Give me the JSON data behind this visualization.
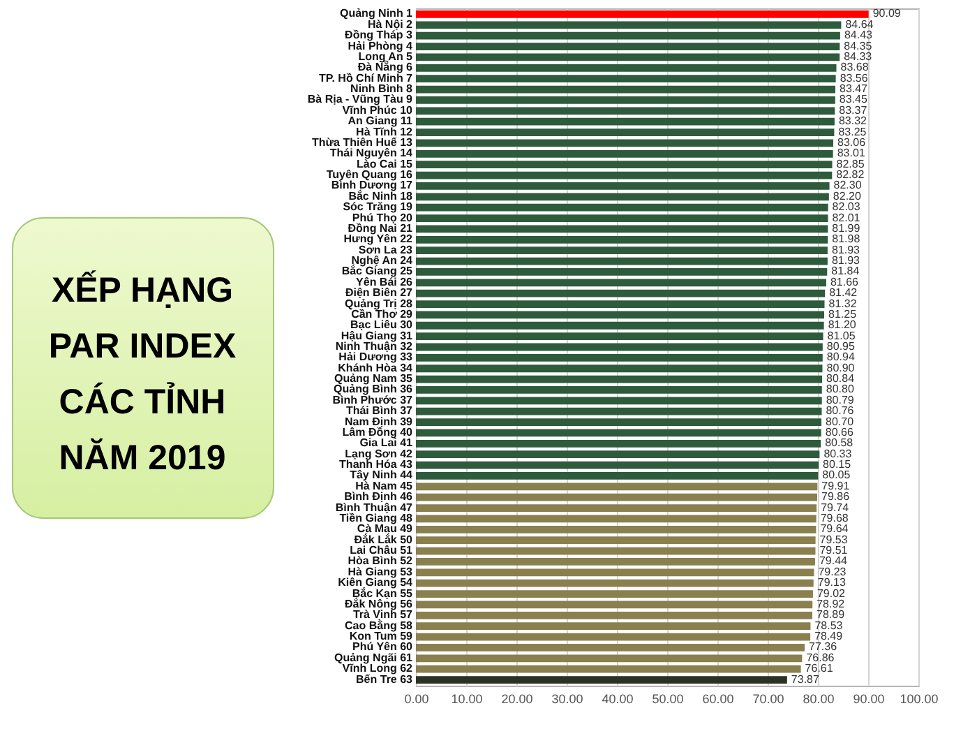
{
  "chart_data": {
    "type": "bar",
    "orientation": "horizontal",
    "title": "XẾP HẠNG PAR INDEX CÁC TỈNH NĂM 2019",
    "categories": [
      "Quảng Ninh 1",
      "Hà Nội 2",
      "Đồng Tháp 3",
      "Hải Phòng 4",
      "Long An 5",
      "Đà Nẵng 6",
      "TP. Hồ Chí Minh 7",
      "Ninh Bình 8",
      "Bà Rịa - Vũng Tàu 9",
      "Vĩnh Phúc 10",
      "An Giang 11",
      "Hà Tĩnh 12",
      "Thừa Thiên Huế 13",
      "Thái Nguyên 14",
      "Lào Cai 15",
      "Tuyên Quang 16",
      "Bình Dương 17",
      "Bắc Ninh 18",
      "Sóc Trăng 19",
      "Phú Thọ 20",
      "Đồng Nai 21",
      "Hưng Yên 22",
      "Sơn La 23",
      "Nghệ An 24",
      "Bắc Giang 25",
      "Yên Bái 26",
      "Điện Biên 27",
      "Quảng Trị 28",
      "Cần Thơ 29",
      "Bạc Liêu 30",
      "Hậu Giang 31",
      "Ninh Thuận 32",
      "Hải Dương 33",
      "Khánh Hòa 34",
      "Quảng Nam 35",
      "Quảng Bình 36",
      "Bình Phước 37",
      "Thái Bình 37",
      "Nam Định 39",
      "Lâm Đồng 40",
      "Gia Lai 41",
      "Lạng Sơn 42",
      "Thanh Hóa 43",
      "Tây Ninh 44",
      "Hà Nam 45",
      "Bình Định 46",
      "Bình Thuận 47",
      "Tiền Giang 48",
      "Cà Mau 49",
      "Đắk Lắk 50",
      "Lai Châu 51",
      "Hòa Bình 52",
      "Hà Giang 53",
      "Kiên Giang 54",
      "Bắc Kạn 55",
      "Đắk Nông 56",
      "Trà Vinh 57",
      "Cao Bằng 58",
      "Kon Tum 59",
      "Phú Yên 60",
      "Quảng Ngãi 61",
      "Vĩnh Long 62",
      "Bến Tre 63"
    ],
    "values": [
      90.09,
      84.64,
      84.43,
      84.35,
      84.33,
      83.68,
      83.56,
      83.47,
      83.45,
      83.37,
      83.32,
      83.25,
      83.06,
      83.01,
      82.85,
      82.82,
      82.3,
      82.2,
      82.03,
      82.01,
      81.99,
      81.98,
      81.93,
      81.93,
      81.84,
      81.66,
      81.42,
      81.32,
      81.25,
      81.2,
      81.05,
      80.95,
      80.94,
      80.9,
      80.84,
      80.8,
      80.79,
      80.76,
      80.7,
      80.66,
      80.58,
      80.33,
      80.15,
      80.05,
      79.91,
      79.86,
      79.74,
      79.68,
      79.64,
      79.53,
      79.51,
      79.44,
      79.23,
      79.13,
      79.02,
      78.92,
      78.89,
      78.53,
      78.49,
      77.36,
      76.86,
      76.61,
      73.87
    ],
    "colors": [
      "#ff0000",
      "#2e5b3b",
      "#2e5b3b",
      "#2e5b3b",
      "#2e5b3b",
      "#2e5b3b",
      "#2e5b3b",
      "#2e5b3b",
      "#2e5b3b",
      "#2e5b3b",
      "#2e5b3b",
      "#2e5b3b",
      "#2e5b3b",
      "#2e5b3b",
      "#2e5b3b",
      "#2e5b3b",
      "#2e5b3b",
      "#2e5b3b",
      "#2e5b3b",
      "#2e5b3b",
      "#2e5b3b",
      "#2e5b3b",
      "#2e5b3b",
      "#2e5b3b",
      "#2e5b3b",
      "#2e5b3b",
      "#2e5b3b",
      "#2e5b3b",
      "#2e5b3b",
      "#2e5b3b",
      "#2e5b3b",
      "#2e5b3b",
      "#2e5b3b",
      "#2e5b3b",
      "#2e5b3b",
      "#2e5b3b",
      "#2e5b3b",
      "#2e5b3b",
      "#2e5b3b",
      "#2e5b3b",
      "#2e5b3b",
      "#2e5b3b",
      "#2e5b3b",
      "#2e5b3b",
      "#8a7f4e",
      "#8a7f4e",
      "#8a7f4e",
      "#8a7f4e",
      "#8a7f4e",
      "#8a7f4e",
      "#8a7f4e",
      "#8a7f4e",
      "#8a7f4e",
      "#8a7f4e",
      "#8a7f4e",
      "#8a7f4e",
      "#8a7f4e",
      "#8a7f4e",
      "#8a7f4e",
      "#8a7f4e",
      "#8a7f4e",
      "#8a7f4e",
      "#2b3223"
    ],
    "value_labels": [
      "90.09",
      "84.64",
      "84.43",
      "84.35",
      "84.33",
      "83.68",
      "83.56",
      "83.47",
      "83.45",
      "83.37",
      "83.32",
      "83.25",
      "83.06",
      "83.01",
      "82.85",
      "82.82",
      "82.30",
      "82.20",
      "82.03",
      "82.01",
      "81.99",
      "81.98",
      "81.93",
      "81.93",
      "81.84",
      "81.66",
      "81.42",
      "81.32",
      "81.25",
      "81.20",
      "81.05",
      "80.95",
      "80.94",
      "80.90",
      "80.84",
      "80.80",
      "80.79",
      "80.76",
      "80.70",
      "80.66",
      "80.58",
      "80.33",
      "80.15",
      "80.05",
      "79.91",
      "79.86",
      "79.74",
      "79.68",
      "79.64",
      "79.53",
      "79.51",
      "79.44",
      "79.23",
      "79.13",
      "79.02",
      "78.92",
      "78.89",
      "78.53",
      "78.49",
      "77.36",
      "76.86",
      "76.61",
      "73.87"
    ],
    "xlim": [
      0,
      100
    ],
    "xticks": [
      {
        "value": 0,
        "label": "0.00"
      },
      {
        "value": 10,
        "label": "10.00"
      },
      {
        "value": 20,
        "label": "20.00"
      },
      {
        "value": 30,
        "label": "30.00"
      },
      {
        "value": 40,
        "label": "40.00"
      },
      {
        "value": 50,
        "label": "50.00"
      },
      {
        "value": 60,
        "label": "60.00"
      },
      {
        "value": 70,
        "label": "70.00"
      },
      {
        "value": 80,
        "label": "80.00"
      },
      {
        "value": 90,
        "label": "90.00"
      },
      {
        "value": 100,
        "label": "100.00"
      }
    ],
    "grid": "x"
  }
}
